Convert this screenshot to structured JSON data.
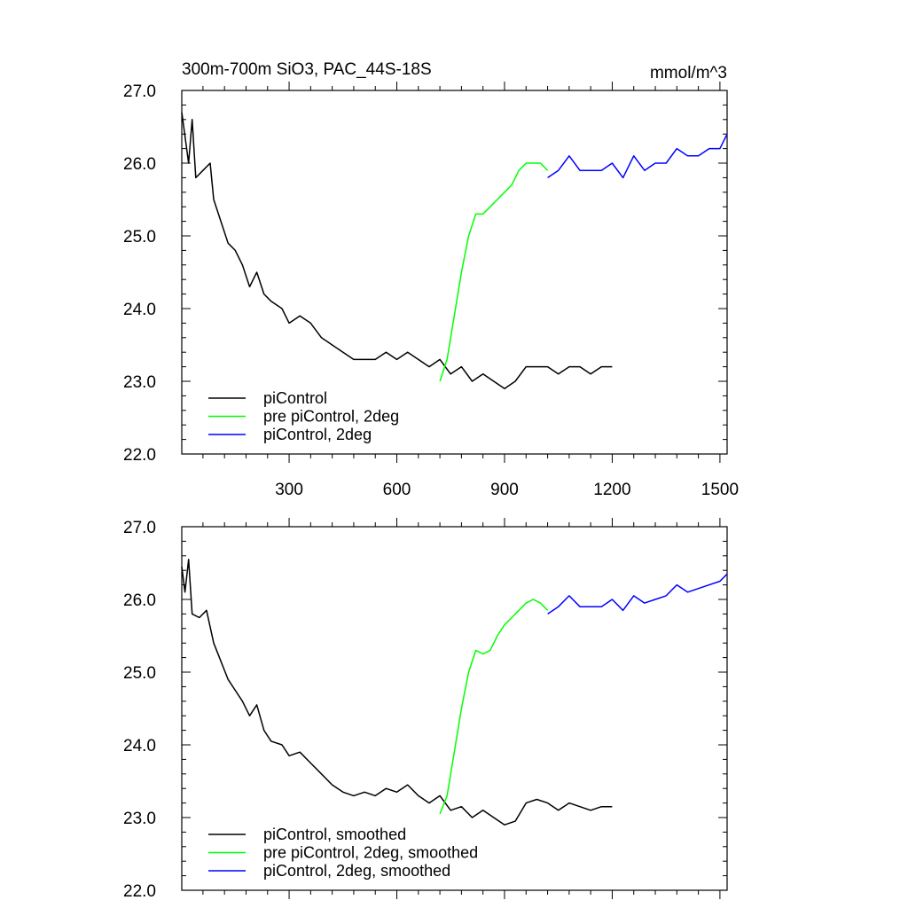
{
  "colors": {
    "piControl": "#000000",
    "pre_piControl_2deg": "#00ff00",
    "piControl_2deg": "#0000ff"
  },
  "chart_data": [
    {
      "type": "line",
      "title": "300m-700m SiO3, PAC_44S-18S",
      "units": "mmol/m^3",
      "xlim": [
        1,
        1520
      ],
      "ylim": [
        22.0,
        27.0
      ],
      "x_ticks": [
        300,
        600,
        900,
        1200,
        1500
      ],
      "y_ticks": [
        "22.0",
        "23.0",
        "24.0",
        "25.0",
        "26.0",
        "27.0"
      ],
      "legend": [
        "piControl",
        "pre piControl, 2deg",
        "piControl, 2deg"
      ],
      "legend_position": "bottom-left",
      "series": [
        {
          "name": "piControl",
          "color": "#000000",
          "points": [
            [
              1,
              26.7
            ],
            [
              20,
              26.0
            ],
            [
              30,
              26.6
            ],
            [
              40,
              25.8
            ],
            [
              60,
              25.9
            ],
            [
              80,
              26.0
            ],
            [
              90,
              25.5
            ],
            [
              110,
              25.2
            ],
            [
              130,
              24.9
            ],
            [
              150,
              24.8
            ],
            [
              170,
              24.6
            ],
            [
              190,
              24.3
            ],
            [
              210,
              24.5
            ],
            [
              230,
              24.2
            ],
            [
              250,
              24.1
            ],
            [
              280,
              24.0
            ],
            [
              300,
              23.8
            ],
            [
              330,
              23.9
            ],
            [
              360,
              23.8
            ],
            [
              390,
              23.6
            ],
            [
              420,
              23.5
            ],
            [
              450,
              23.4
            ],
            [
              480,
              23.3
            ],
            [
              510,
              23.3
            ],
            [
              540,
              23.3
            ],
            [
              570,
              23.4
            ],
            [
              600,
              23.3
            ],
            [
              630,
              23.4
            ],
            [
              660,
              23.3
            ],
            [
              690,
              23.2
            ],
            [
              720,
              23.3
            ],
            [
              750,
              23.1
            ],
            [
              780,
              23.2
            ],
            [
              810,
              23.0
            ],
            [
              840,
              23.1
            ],
            [
              870,
              23.0
            ],
            [
              900,
              22.9
            ],
            [
              930,
              23.0
            ],
            [
              960,
              23.2
            ],
            [
              990,
              23.2
            ],
            [
              1020,
              23.2
            ],
            [
              1050,
              23.1
            ],
            [
              1080,
              23.2
            ],
            [
              1110,
              23.2
            ],
            [
              1140,
              23.1
            ],
            [
              1170,
              23.2
            ],
            [
              1200,
              23.2
            ]
          ]
        },
        {
          "name": "pre piControl, 2deg",
          "color": "#00ff00",
          "points": [
            [
              720,
              23.0
            ],
            [
              740,
              23.3
            ],
            [
              760,
              23.9
            ],
            [
              780,
              24.5
            ],
            [
              800,
              25.0
            ],
            [
              820,
              25.3
            ],
            [
              840,
              25.3
            ],
            [
              860,
              25.4
            ],
            [
              880,
              25.5
            ],
            [
              900,
              25.6
            ],
            [
              920,
              25.7
            ],
            [
              940,
              25.9
            ],
            [
              960,
              26.0
            ],
            [
              980,
              26.0
            ],
            [
              1000,
              26.0
            ],
            [
              1020,
              25.9
            ]
          ]
        },
        {
          "name": "piControl, 2deg",
          "color": "#0000ff",
          "points": [
            [
              1020,
              25.8
            ],
            [
              1050,
              25.9
            ],
            [
              1080,
              26.1
            ],
            [
              1110,
              25.9
            ],
            [
              1140,
              25.9
            ],
            [
              1170,
              25.9
            ],
            [
              1200,
              26.0
            ],
            [
              1230,
              25.8
            ],
            [
              1260,
              26.1
            ],
            [
              1290,
              25.9
            ],
            [
              1320,
              26.0
            ],
            [
              1350,
              26.0
            ],
            [
              1380,
              26.2
            ],
            [
              1410,
              26.1
            ],
            [
              1440,
              26.1
            ],
            [
              1470,
              26.2
            ],
            [
              1500,
              26.2
            ],
            [
              1520,
              26.4
            ]
          ]
        }
      ]
    },
    {
      "type": "line",
      "xlim": [
        1,
        1520
      ],
      "ylim": [
        22.0,
        27.0
      ],
      "y_ticks": [
        "22.0",
        "23.0",
        "24.0",
        "25.0",
        "26.0",
        "27.0"
      ],
      "legend": [
        "piControl, smoothed",
        "pre piControl, 2deg, smoothed",
        "piControl, 2deg, smoothed"
      ],
      "legend_position": "bottom-left",
      "series": [
        {
          "name": "piControl, smoothed",
          "color": "#000000",
          "points": [
            [
              1,
              26.45
            ],
            [
              10,
              26.1
            ],
            [
              20,
              26.55
            ],
            [
              30,
              25.8
            ],
            [
              50,
              25.75
            ],
            [
              70,
              25.85
            ],
            [
              90,
              25.4
            ],
            [
              110,
              25.15
            ],
            [
              130,
              24.9
            ],
            [
              150,
              24.75
            ],
            [
              170,
              24.6
            ],
            [
              190,
              24.4
            ],
            [
              210,
              24.55
            ],
            [
              230,
              24.2
            ],
            [
              250,
              24.05
            ],
            [
              280,
              24.0
            ],
            [
              300,
              23.85
            ],
            [
              330,
              23.9
            ],
            [
              360,
              23.75
            ],
            [
              390,
              23.6
            ],
            [
              420,
              23.45
            ],
            [
              450,
              23.35
            ],
            [
              480,
              23.3
            ],
            [
              510,
              23.35
            ],
            [
              540,
              23.3
            ],
            [
              570,
              23.4
            ],
            [
              600,
              23.35
            ],
            [
              630,
              23.45
            ],
            [
              660,
              23.3
            ],
            [
              690,
              23.2
            ],
            [
              720,
              23.3
            ],
            [
              750,
              23.1
            ],
            [
              780,
              23.15
            ],
            [
              810,
              23.0
            ],
            [
              840,
              23.1
            ],
            [
              870,
              23.0
            ],
            [
              900,
              22.9
            ],
            [
              930,
              22.95
            ],
            [
              960,
              23.2
            ],
            [
              990,
              23.25
            ],
            [
              1020,
              23.2
            ],
            [
              1050,
              23.1
            ],
            [
              1080,
              23.2
            ],
            [
              1110,
              23.15
            ],
            [
              1140,
              23.1
            ],
            [
              1170,
              23.15
            ],
            [
              1200,
              23.15
            ]
          ]
        },
        {
          "name": "pre piControl, 2deg, smoothed",
          "color": "#00ff00",
          "points": [
            [
              720,
              23.05
            ],
            [
              740,
              23.3
            ],
            [
              760,
              23.9
            ],
            [
              780,
              24.5
            ],
            [
              800,
              25.0
            ],
            [
              820,
              25.3
            ],
            [
              840,
              25.25
            ],
            [
              860,
              25.3
            ],
            [
              880,
              25.5
            ],
            [
              900,
              25.65
            ],
            [
              920,
              25.75
            ],
            [
              940,
              25.85
            ],
            [
              960,
              25.95
            ],
            [
              980,
              26.0
            ],
            [
              1000,
              25.95
            ],
            [
              1020,
              25.85
            ]
          ]
        },
        {
          "name": "piControl, 2deg, smoothed",
          "color": "#0000ff",
          "points": [
            [
              1020,
              25.8
            ],
            [
              1050,
              25.9
            ],
            [
              1080,
              26.05
            ],
            [
              1110,
              25.9
            ],
            [
              1140,
              25.9
            ],
            [
              1170,
              25.9
            ],
            [
              1200,
              26.0
            ],
            [
              1230,
              25.85
            ],
            [
              1260,
              26.05
            ],
            [
              1290,
              25.95
            ],
            [
              1320,
              26.0
            ],
            [
              1350,
              26.05
            ],
            [
              1380,
              26.2
            ],
            [
              1410,
              26.1
            ],
            [
              1440,
              26.15
            ],
            [
              1470,
              26.2
            ],
            [
              1500,
              26.25
            ],
            [
              1520,
              26.35
            ]
          ]
        }
      ]
    }
  ]
}
